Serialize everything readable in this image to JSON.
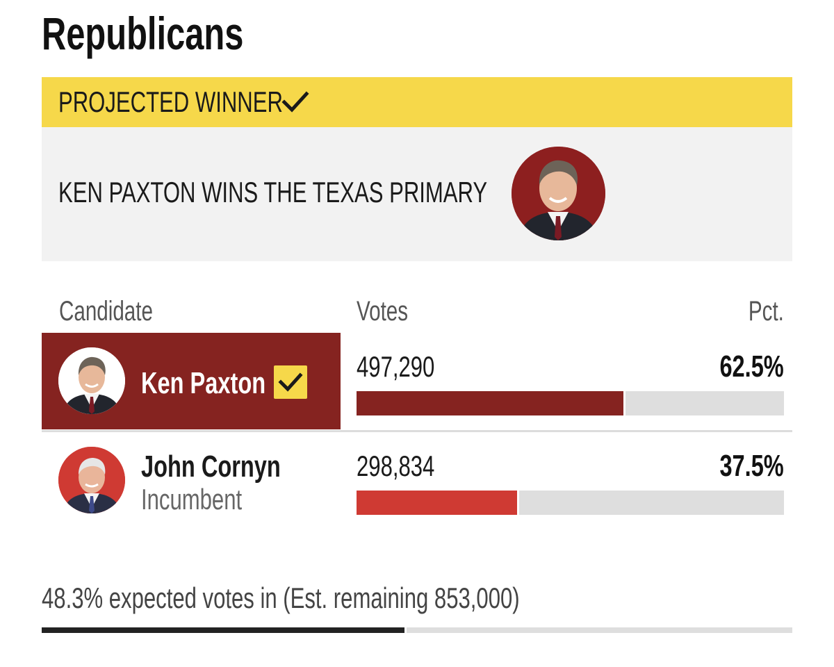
{
  "section": {
    "title": "Republicans"
  },
  "banner": {
    "label": "PROJECTED WINNER",
    "check_icon": "checkmark-icon",
    "color": "#f6d84a"
  },
  "headline": {
    "text": "KEN PAXTON WINS THE TEXAS PRIMARY",
    "avatar_icon": "candidate-portrait-icon"
  },
  "table": {
    "headers": {
      "candidate": "Candidate",
      "votes": "Votes",
      "pct": "Pct."
    },
    "rows": [
      {
        "name": "Ken Paxton",
        "subtitle": "",
        "votes": "497,290",
        "pct": "62.5%",
        "share": 0.625,
        "winner": true,
        "bar_color": "#852320"
      },
      {
        "name": "John Cornyn",
        "subtitle": "Incumbent",
        "votes": "298,834",
        "pct": "37.5%",
        "share": 0.375,
        "winner": false,
        "bar_color": "#cf3a33"
      }
    ]
  },
  "footer": {
    "expected_text": "48.3% expected votes in (Est. remaining 853,000)",
    "expected_share": 0.483
  }
}
